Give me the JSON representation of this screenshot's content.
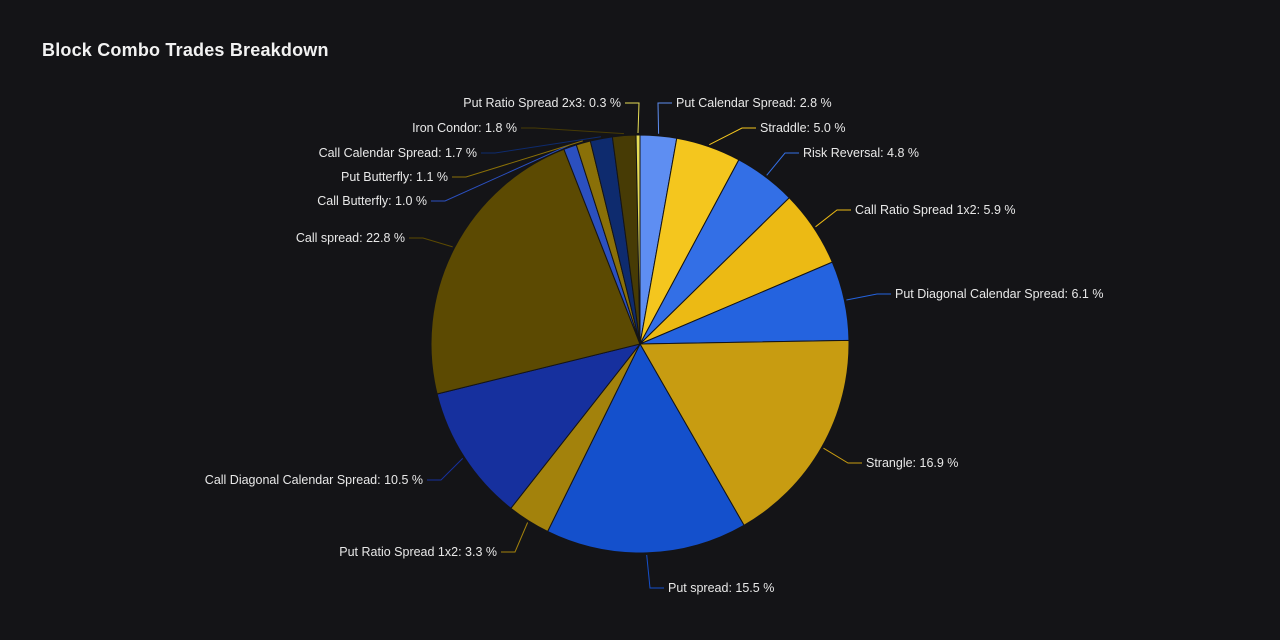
{
  "page": {
    "title": "Block Combo Trades Breakdown",
    "background_color": "#141417",
    "text_color": "#e8e8e8"
  },
  "chart_data": {
    "type": "pie",
    "title": "Block Combo Trades Breakdown",
    "unit": "%",
    "legend_position": "none",
    "data_labels": "outside-with-connectors",
    "start_angle_deg": 0,
    "direction": "clockwise",
    "slices": [
      {
        "label": "Put Calendar Spread",
        "value": 2.8,
        "color": "#5E8EF2"
      },
      {
        "label": "Straddle",
        "value": 5.0,
        "color": "#F4C61E"
      },
      {
        "label": "Risk Reversal",
        "value": 4.8,
        "color": "#336FE6"
      },
      {
        "label": "Call Ratio Spread 1x2",
        "value": 5.9,
        "color": "#ECBA14"
      },
      {
        "label": "Put Diagonal Calendar Spread",
        "value": 6.1,
        "color": "#2463DF"
      },
      {
        "label": "Strangle",
        "value": 16.9,
        "color": "#C89C11"
      },
      {
        "label": "Put spread",
        "value": 15.5,
        "color": "#1450CC"
      },
      {
        "label": "Put Ratio Spread 1x2",
        "value": 3.3,
        "color": "#A3820C"
      },
      {
        "label": "Call Diagonal Calendar Spread",
        "value": 10.5,
        "color": "#16309E"
      },
      {
        "label": "Call spread",
        "value": 22.8,
        "color": "#5C4A02"
      },
      {
        "label": "Call Butterfly",
        "value": 1.0,
        "color": "#2B50C0"
      },
      {
        "label": "Put Butterfly",
        "value": 1.1,
        "color": "#8A7008"
      },
      {
        "label": "Call Calendar Spread",
        "value": 1.7,
        "color": "#0E2B6E"
      },
      {
        "label": "Iron Condor",
        "value": 1.8,
        "color": "#473B05"
      },
      {
        "label": "Put Ratio Spread 2x3",
        "value": 0.3,
        "color": "#E6DD55"
      }
    ]
  }
}
